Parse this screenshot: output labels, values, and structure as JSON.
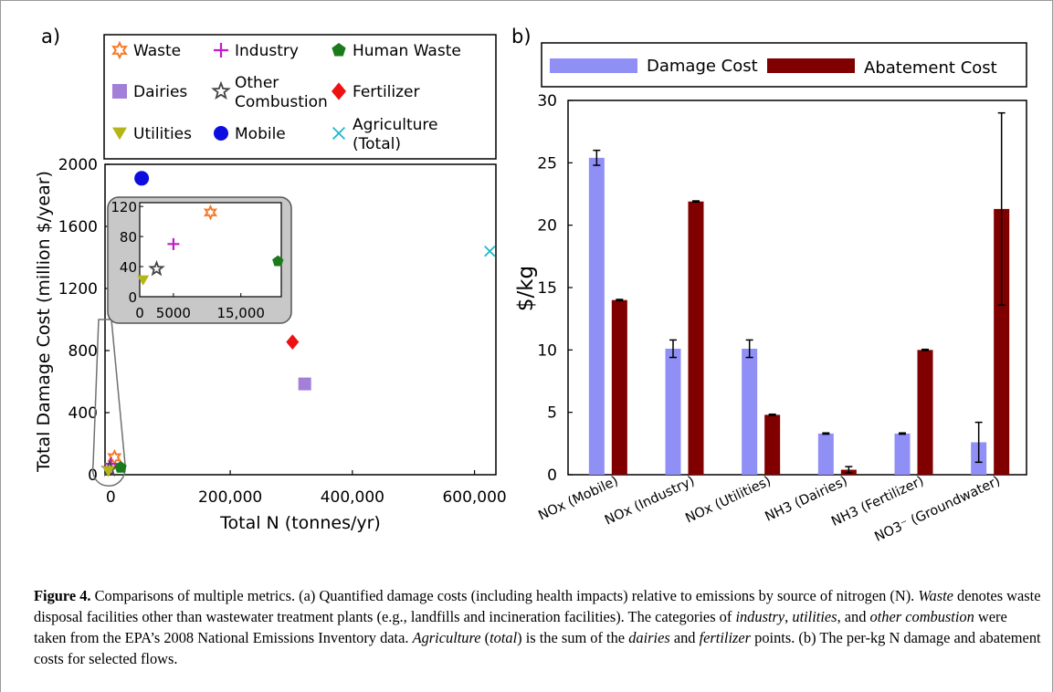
{
  "panel_a": {
    "label": "a)",
    "legend": [
      {
        "name": "Waste",
        "marker": "star-outline-icon",
        "color": "#f47a2a"
      },
      {
        "name": "Industry",
        "marker": "plus-icon",
        "color": "#c41ac9"
      },
      {
        "name": "Human Waste",
        "marker": "pentagon-icon",
        "color": "#1b7a1b"
      },
      {
        "name": "Dairies",
        "marker": "square-icon",
        "color": "#a27fd8"
      },
      {
        "name": "Other Combustion",
        "marker": "star-icon",
        "color": "#444444"
      },
      {
        "name": "Fertilizer",
        "marker": "diamond-icon",
        "color": "#ee1111"
      },
      {
        "name": "Utilities",
        "marker": "triangle-down-icon",
        "color": "#b5b51a"
      },
      {
        "name": "Mobile",
        "marker": "circle-icon",
        "color": "#0d0de0"
      },
      {
        "name": "Agriculture (Total)",
        "marker": "x-icon",
        "color": "#20b9c4"
      }
    ],
    "legend_lines": {
      "other_combustion": [
        "Other",
        "Combustion"
      ],
      "agriculture_total": [
        "Agriculture",
        "(Total)"
      ]
    },
    "xlabel": "Total N (tonnes/yr)",
    "ylabel": "Total Damage Cost (million $/year)",
    "xticks": [
      "0",
      "200,000",
      "400,000",
      "600,000"
    ],
    "yticks": [
      "0",
      "400",
      "800",
      "1200",
      "1600",
      "2000"
    ],
    "inset_xticks": [
      "0",
      "5000",
      "15,000"
    ],
    "inset_yticks": [
      "0",
      "40",
      "80",
      "120"
    ]
  },
  "panel_b": {
    "label": "b)",
    "ylabel": "$/kg",
    "legend": [
      "Damage Cost",
      "Abatement Cost"
    ],
    "yticks": [
      "0",
      "5",
      "10",
      "15",
      "20",
      "25",
      "30"
    ]
  },
  "chart_data": [
    {
      "type": "scatter",
      "xlabel": "Total N (tonnes/yr)",
      "ylabel": "Total Damage Cost (million $/year)",
      "xlim": [
        -5000,
        635000
      ],
      "ylim": [
        0,
        2000
      ],
      "points": [
        {
          "name": "Mobile",
          "x": 55000,
          "y": 1910,
          "color": "#0d0de0"
        },
        {
          "name": "Agriculture (Total)",
          "x": 625000,
          "y": 1440,
          "color": "#20b9c4"
        },
        {
          "name": "Fertilizer",
          "x": 302000,
          "y": 855,
          "color": "#ee1111"
        },
        {
          "name": "Dairies",
          "x": 322000,
          "y": 585,
          "color": "#a27fd8"
        },
        {
          "name": "Waste",
          "x": 10500,
          "y": 112,
          "color": "#f47a2a"
        },
        {
          "name": "Industry",
          "x": 5000,
          "y": 70,
          "color": "#c41ac9"
        },
        {
          "name": "Other Combustion",
          "x": 2500,
          "y": 37,
          "color": "#444444"
        },
        {
          "name": "Utilities",
          "x": 500,
          "y": 22,
          "color": "#b5b51a"
        },
        {
          "name": "Human Waste",
          "x": 20500,
          "y": 47,
          "color": "#1b7a1b"
        }
      ],
      "inset": {
        "xlim": [
          0,
          21000
        ],
        "ylim": [
          0,
          125
        ]
      }
    },
    {
      "type": "bar",
      "ylabel": "$/kg",
      "ylim": [
        0,
        30
      ],
      "categories": [
        "NOx (Mobile)",
        "NOx (Industry)",
        "NOx (Utilities)",
        "NH3 (Dairies)",
        "NH3 (Fertilizer)",
        "NO3⁻ (Groundwater)"
      ],
      "series": [
        {
          "name": "Damage Cost",
          "color": "#8f8ff5",
          "values": [
            25.4,
            10.1,
            10.1,
            3.3,
            3.3,
            2.6
          ],
          "error": [
            0.6,
            0.7,
            0.7,
            0.05,
            0.05,
            1.6
          ]
        },
        {
          "name": "Abatement Cost",
          "color": "#800000",
          "values": [
            14.0,
            21.9,
            4.8,
            0.4,
            10.0,
            21.3
          ],
          "error": [
            0.05,
            0.05,
            0.05,
            0.25,
            0.05,
            7.7
          ]
        }
      ]
    }
  ]
}
